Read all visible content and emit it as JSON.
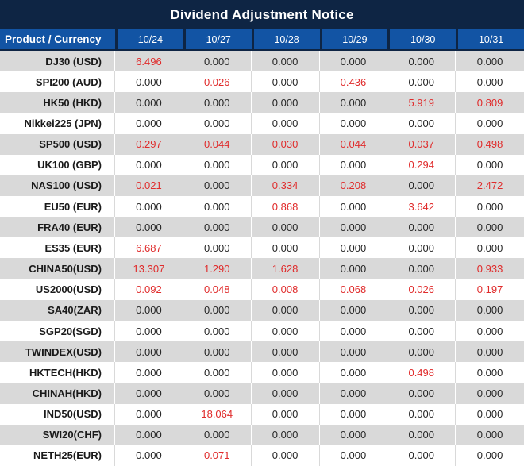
{
  "title": "Dividend Adjustment Notice",
  "colors": {
    "title_bar_navy": "#0e2544",
    "header_blue": "#1254a4",
    "stripe_gray": "#d9d9d9",
    "row_white": "#ffffff",
    "value_black": "#262626",
    "value_red": "#e02b2b",
    "header_text": "#ffffff"
  },
  "chart_data": {
    "type": "table",
    "title": "Dividend Adjustment Notice",
    "columns": [
      "Product / Currency",
      "10/24",
      "10/27",
      "10/28",
      "10/29",
      "10/30",
      "10/31"
    ],
    "rows": [
      {
        "product": "DJ30 (USD)",
        "values": [
          "6.496",
          "0.000",
          "0.000",
          "0.000",
          "0.000",
          "0.000"
        ],
        "red_flags": [
          true,
          false,
          false,
          false,
          false,
          false
        ]
      },
      {
        "product": "SPI200 (AUD)",
        "values": [
          "0.000",
          "0.026",
          "0.000",
          "0.436",
          "0.000",
          "0.000"
        ],
        "red_flags": [
          false,
          true,
          false,
          true,
          false,
          false
        ]
      },
      {
        "product": "HK50 (HKD)",
        "values": [
          "0.000",
          "0.000",
          "0.000",
          "0.000",
          "5.919",
          "0.809"
        ],
        "red_flags": [
          false,
          false,
          false,
          false,
          true,
          true
        ]
      },
      {
        "product": "Nikkei225 (JPN)",
        "values": [
          "0.000",
          "0.000",
          "0.000",
          "0.000",
          "0.000",
          "0.000"
        ],
        "red_flags": [
          false,
          false,
          false,
          false,
          false,
          false
        ]
      },
      {
        "product": "SP500 (USD)",
        "values": [
          "0.297",
          "0.044",
          "0.030",
          "0.044",
          "0.037",
          "0.498"
        ],
        "red_flags": [
          true,
          true,
          true,
          true,
          true,
          true
        ]
      },
      {
        "product": "UK100 (GBP)",
        "values": [
          "0.000",
          "0.000",
          "0.000",
          "0.000",
          "0.294",
          "0.000"
        ],
        "red_flags": [
          false,
          false,
          false,
          false,
          true,
          false
        ]
      },
      {
        "product": "NAS100 (USD)",
        "values": [
          "0.021",
          "0.000",
          "0.334",
          "0.208",
          "0.000",
          "2.472"
        ],
        "red_flags": [
          true,
          false,
          true,
          true,
          false,
          true
        ]
      },
      {
        "product": "EU50 (EUR)",
        "values": [
          "0.000",
          "0.000",
          "0.868",
          "0.000",
          "3.642",
          "0.000"
        ],
        "red_flags": [
          false,
          false,
          true,
          false,
          true,
          false
        ]
      },
      {
        "product": "FRA40 (EUR)",
        "values": [
          "0.000",
          "0.000",
          "0.000",
          "0.000",
          "0.000",
          "0.000"
        ],
        "red_flags": [
          false,
          false,
          false,
          false,
          false,
          false
        ]
      },
      {
        "product": "ES35 (EUR)",
        "values": [
          "6.687",
          "0.000",
          "0.000",
          "0.000",
          "0.000",
          "0.000"
        ],
        "red_flags": [
          true,
          false,
          false,
          false,
          false,
          false
        ]
      },
      {
        "product": "CHINA50(USD)",
        "values": [
          "13.307",
          "1.290",
          "1.628",
          "0.000",
          "0.000",
          "0.933"
        ],
        "red_flags": [
          true,
          true,
          true,
          false,
          false,
          true
        ]
      },
      {
        "product": "US2000(USD)",
        "values": [
          "0.092",
          "0.048",
          "0.008",
          "0.068",
          "0.026",
          "0.197"
        ],
        "red_flags": [
          true,
          true,
          true,
          true,
          true,
          true
        ]
      },
      {
        "product": "SA40(ZAR)",
        "values": [
          "0.000",
          "0.000",
          "0.000",
          "0.000",
          "0.000",
          "0.000"
        ],
        "red_flags": [
          false,
          false,
          false,
          false,
          false,
          false
        ]
      },
      {
        "product": "SGP20(SGD)",
        "values": [
          "0.000",
          "0.000",
          "0.000",
          "0.000",
          "0.000",
          "0.000"
        ],
        "red_flags": [
          false,
          false,
          false,
          false,
          false,
          false
        ]
      },
      {
        "product": "TWINDEX(USD)",
        "values": [
          "0.000",
          "0.000",
          "0.000",
          "0.000",
          "0.000",
          "0.000"
        ],
        "red_flags": [
          false,
          false,
          false,
          false,
          false,
          false
        ]
      },
      {
        "product": "HKTECH(HKD)",
        "values": [
          "0.000",
          "0.000",
          "0.000",
          "0.000",
          "0.498",
          "0.000"
        ],
        "red_flags": [
          false,
          false,
          false,
          false,
          true,
          false
        ]
      },
      {
        "product": "CHINAH(HKD)",
        "values": [
          "0.000",
          "0.000",
          "0.000",
          "0.000",
          "0.000",
          "0.000"
        ],
        "red_flags": [
          false,
          false,
          false,
          false,
          false,
          false
        ]
      },
      {
        "product": "IND50(USD)",
        "values": [
          "0.000",
          "18.064",
          "0.000",
          "0.000",
          "0.000",
          "0.000"
        ],
        "red_flags": [
          false,
          true,
          false,
          false,
          false,
          false
        ]
      },
      {
        "product": "SWI20(CHF)",
        "values": [
          "0.000",
          "0.000",
          "0.000",
          "0.000",
          "0.000",
          "0.000"
        ],
        "red_flags": [
          false,
          false,
          false,
          false,
          false,
          false
        ]
      },
      {
        "product": "NETH25(EUR)",
        "values": [
          "0.000",
          "0.071",
          "0.000",
          "0.000",
          "0.000",
          "0.000"
        ],
        "red_flags": [
          false,
          true,
          false,
          false,
          false,
          false
        ]
      }
    ]
  }
}
